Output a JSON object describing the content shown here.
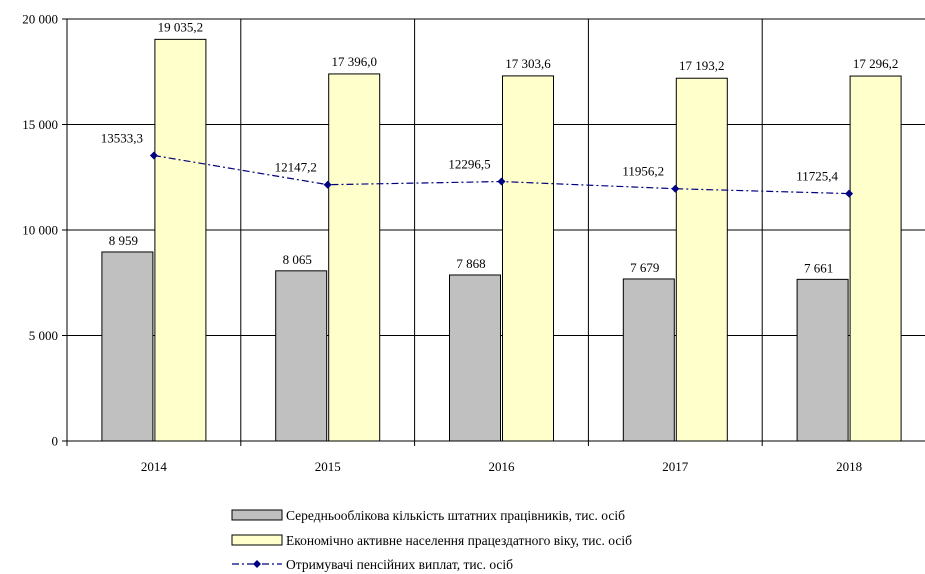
{
  "chart_data": {
    "type": "bar",
    "categories": [
      "2014",
      "2015",
      "2016",
      "2017",
      "2018"
    ],
    "ylim": [
      0,
      20000
    ],
    "yticks": [
      0,
      5000,
      10000,
      15000,
      20000
    ],
    "ytick_labels": [
      "0",
      "5 000",
      "10 000",
      "15 000",
      "20 000"
    ],
    "grid": true,
    "legend_position": "bottom",
    "series": [
      {
        "name": "Середньооблікова кількість штатних працівників, тис. осіб",
        "kind": "bar",
        "color": "#c0c0c0",
        "values": [
          8959,
          8065,
          7868,
          7679,
          7661
        ],
        "labels": [
          "8 959",
          "8 065",
          "7 868",
          "7 679",
          "7 661"
        ]
      },
      {
        "name": "Економічно активне населення працездатного віку, тис. осіб",
        "kind": "bar",
        "color": "#ffffcc",
        "values": [
          19035.2,
          17396.0,
          17303.6,
          17193.2,
          17296.2
        ],
        "labels": [
          "19 035,2",
          "17 396,0",
          "17 303,6",
          "17 193,2",
          "17 296,2"
        ]
      },
      {
        "name": "Отримувачі пенсійних виплат, тис. осіб",
        "kind": "line",
        "color": "#000080",
        "line_style": "dash-dot",
        "marker": "diamond",
        "values": [
          13533.3,
          12147.2,
          12296.5,
          11956.2,
          11725.4
        ],
        "labels": [
          "13533,3",
          "12147,2",
          "12296,5",
          "11956,2",
          "11725,4"
        ]
      }
    ]
  }
}
